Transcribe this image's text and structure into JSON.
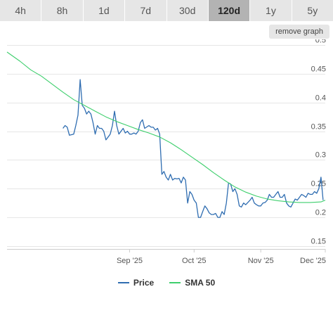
{
  "range_tabs": [
    {
      "label": "4h",
      "active": false
    },
    {
      "label": "8h",
      "active": false
    },
    {
      "label": "1d",
      "active": false
    },
    {
      "label": "7d",
      "active": false
    },
    {
      "label": "30d",
      "active": false
    },
    {
      "label": "120d",
      "active": true
    },
    {
      "label": "1y",
      "active": false
    },
    {
      "label": "5y",
      "active": false
    }
  ],
  "remove_graph_label": "remove graph",
  "colors": {
    "price": "#2f6db1",
    "sma": "#3ecf6d",
    "grid": "#e6e6e6"
  },
  "chart_data": {
    "type": "line",
    "x_ticks": [
      "Sep '25",
      "Oct '25",
      "Nov '25",
      "Dec '25"
    ],
    "x_tick_days": [
      31,
      61,
      92,
      122
    ],
    "x_range_days": [
      -26,
      122
    ],
    "y_ticks": [
      0.15,
      0.2,
      0.25,
      0.3,
      0.35,
      0.4,
      0.45,
      0.5
    ],
    "ylim": [
      0.145,
      0.51
    ],
    "y_axis_position": "right",
    "grid": true,
    "legend_position": "bottom-center",
    "series": [
      {
        "name": "Price",
        "x": [
          0,
          1,
          2,
          3,
          5,
          6,
          7,
          8,
          9,
          10,
          11,
          12,
          13,
          14,
          15,
          16,
          17,
          18,
          19,
          20,
          21,
          22,
          23,
          24,
          25,
          26,
          28,
          29,
          30,
          31,
          32,
          33,
          34,
          35,
          36,
          37,
          38,
          40,
          41,
          42,
          43,
          44,
          45,
          46,
          47,
          48,
          49,
          50,
          51,
          52,
          53,
          54,
          55,
          56,
          57,
          58,
          59,
          60,
          61,
          62,
          63,
          64,
          65,
          66,
          67,
          68,
          69,
          70,
          71,
          72,
          73,
          74,
          75,
          76,
          77,
          78,
          79,
          80,
          81,
          82,
          83,
          84,
          85,
          86,
          87,
          88,
          89,
          90,
          91,
          92,
          93,
          94,
          95,
          96,
          97,
          98,
          99,
          100,
          101,
          102,
          103,
          104,
          105,
          106,
          107,
          108,
          109,
          110,
          111,
          112,
          113,
          114,
          115,
          116,
          117,
          118,
          119,
          120,
          121
        ],
        "values": [
          0.355,
          0.36,
          0.357,
          0.343,
          0.345,
          0.36,
          0.378,
          0.44,
          0.395,
          0.39,
          0.38,
          0.385,
          0.38,
          0.365,
          0.345,
          0.36,
          0.355,
          0.355,
          0.35,
          0.335,
          0.34,
          0.345,
          0.36,
          0.385,
          0.36,
          0.345,
          0.355,
          0.347,
          0.35,
          0.345,
          0.345,
          0.347,
          0.345,
          0.35,
          0.365,
          0.37,
          0.355,
          0.36,
          0.357,
          0.357,
          0.352,
          0.355,
          0.345,
          0.275,
          0.28,
          0.27,
          0.265,
          0.275,
          0.265,
          0.268,
          0.267,
          0.268,
          0.26,
          0.27,
          0.265,
          0.225,
          0.245,
          0.24,
          0.23,
          0.225,
          0.2,
          0.2,
          0.21,
          0.22,
          0.215,
          0.208,
          0.205,
          0.205,
          0.207,
          0.2,
          0.2,
          0.21,
          0.205,
          0.225,
          0.26,
          0.258,
          0.245,
          0.25,
          0.24,
          0.22,
          0.218,
          0.225,
          0.222,
          0.226,
          0.23,
          0.235,
          0.225,
          0.222,
          0.22,
          0.22,
          0.225,
          0.226,
          0.23,
          0.24,
          0.235,
          0.235,
          0.24,
          0.245,
          0.235,
          0.235,
          0.24,
          0.225,
          0.22,
          0.218,
          0.225,
          0.232,
          0.23,
          0.235,
          0.24,
          0.238,
          0.235,
          0.242,
          0.24,
          0.24,
          0.245,
          0.242,
          0.25,
          0.27,
          0.23
        ],
        "color": "#2f6db1"
      },
      {
        "name": "SMA 50",
        "x": [
          -26,
          -20,
          -15,
          -10,
          -5,
          0,
          5,
          10,
          15,
          20,
          25,
          30,
          35,
          40,
          45,
          50,
          55,
          60,
          65,
          70,
          75,
          80,
          85,
          90,
          95,
          100,
          105,
          110,
          115,
          120,
          122
        ],
        "values": [
          0.488,
          0.472,
          0.457,
          0.446,
          0.432,
          0.418,
          0.405,
          0.395,
          0.385,
          0.375,
          0.367,
          0.36,
          0.353,
          0.347,
          0.34,
          0.33,
          0.318,
          0.305,
          0.292,
          0.278,
          0.265,
          0.253,
          0.244,
          0.237,
          0.232,
          0.229,
          0.227,
          0.226,
          0.226,
          0.227,
          0.23
        ],
        "color": "#3ecf6d"
      }
    ]
  }
}
